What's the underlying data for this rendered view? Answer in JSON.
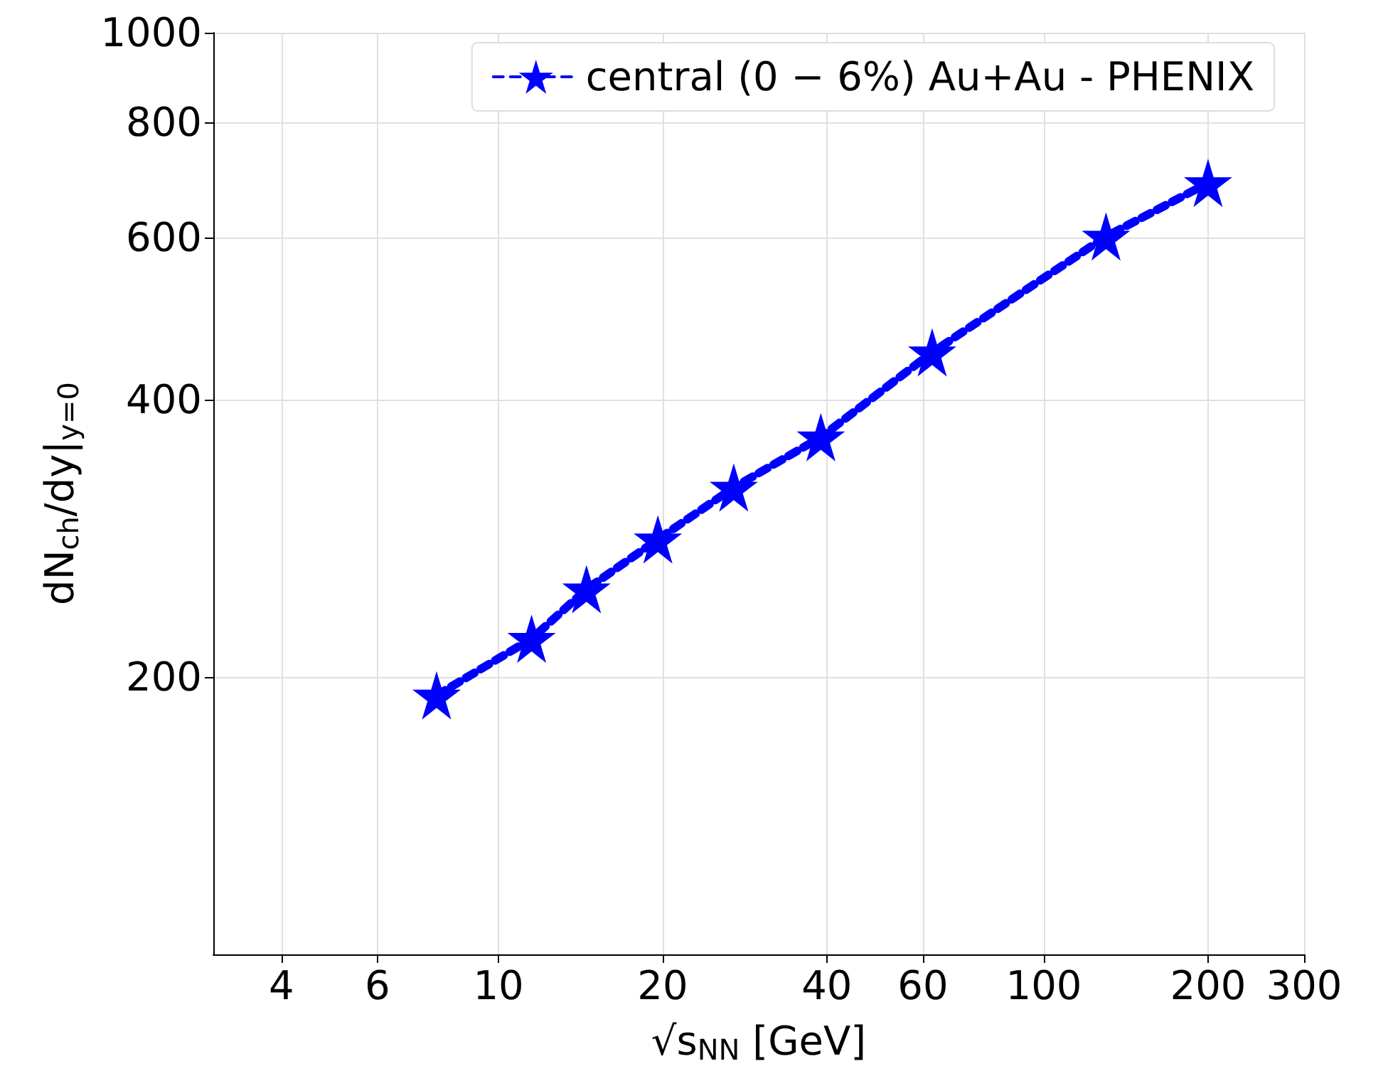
{
  "chart_data": {
    "type": "line",
    "xlabel": "√s$_{NN}$ [GeV]",
    "ylabel": "dN$_{ch}$/dy|$_{y=0}$",
    "x": [
      7.7,
      11.5,
      14.5,
      19.6,
      27,
      39,
      62.4,
      130,
      200
    ],
    "series": [
      {
        "name": "central (0 − 6%) Au+Au - PHENIX",
        "color": "#0000ff",
        "values": [
          191,
          220,
          249,
          282,
          321,
          364,
          450,
          601,
          687
        ]
      }
    ],
    "log": "xy",
    "xlim": [
      3,
      300
    ],
    "xticks": [
      4,
      6,
      10,
      20,
      40,
      60,
      100,
      200,
      300
    ],
    "ylim": [
      100,
      1000
    ],
    "yticks": [
      200,
      400,
      600,
      800,
      1000
    ],
    "grid": true,
    "legend": "top right",
    "marker": "star",
    "line_style": "dotted"
  }
}
